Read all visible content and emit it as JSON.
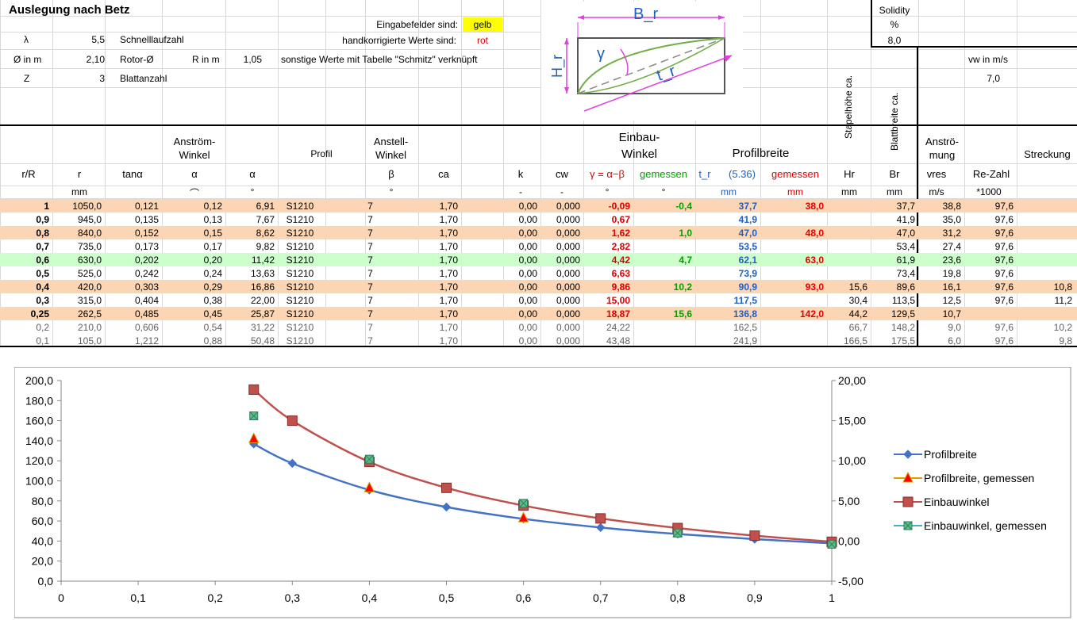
{
  "sheet": {
    "title": "Auslegung nach Betz",
    "input_label": "Eingabefelder sind:",
    "input_value": "gelb",
    "corrected_label": "handkorrigierte Werte sind:",
    "corrected_value": "rot",
    "other_label": "sonstige Werte mit Tabelle \"Schmitz\" verknüpft",
    "lambda_label": "λ",
    "lambda_value": "5,5",
    "lambda_desc": "Schnelllaufzahl",
    "d_label": "Ø in m",
    "d_value": "2,10",
    "d_desc": "Rotor-Ø",
    "r_label": "R in m",
    "r_value": "1,05",
    "z_label": "Z",
    "z_value": "3",
    "z_desc": "Blattanzahl",
    "solidity_label": "Solidity",
    "solidity_unit": "%",
    "solidity_value": "8,0",
    "vw_label": "vw in m/s",
    "vw_value": "7,0",
    "stapel_label": "Stapelhöhe ca.",
    "blattbreite_label": "Blattbreite ca."
  },
  "diagram": {
    "b_label": "B_r",
    "h_label": "H_r",
    "gamma_label": "γ",
    "t_label": "t_r"
  },
  "headers": {
    "anstroem_winkel": [
      "Anström-",
      "Winkel"
    ],
    "profil": "Profil",
    "anstell_winkel": [
      "Anstell-",
      "Winkel"
    ],
    "einbau_winkel": [
      "Einbau-",
      "Winkel"
    ],
    "profilbreite": "Profilbreite",
    "anstroemung": [
      "Anströ-",
      "mung"
    ],
    "streckung": "Streckung",
    "re_zahl": "Re-Zahl",
    "cols": [
      "r/R",
      "r",
      "tanα",
      "α",
      "α",
      "",
      "β",
      "ca",
      "k",
      "cw",
      "γ = α−β",
      "gemessen",
      "t_r",
      "(5.36)",
      "gemessen",
      "Hr",
      "Br",
      "vres",
      "",
      ""
    ],
    "units": [
      "",
      "mm",
      "",
      "⌒",
      "°",
      "",
      "°",
      "",
      "-",
      "-",
      "°",
      "°",
      "mm",
      "",
      "mm",
      "mm",
      "mm",
      "m/s",
      "*1000",
      ""
    ]
  },
  "rows": [
    [
      "1",
      "1050,0",
      "0,121",
      "0,12",
      "6,91",
      "S1210",
      "7",
      "1,70",
      "0,00",
      "0,000",
      "-0,09",
      "-0,4",
      "37,7",
      "",
      "38,0",
      "",
      "37,7",
      "38,8",
      "97,6",
      ""
    ],
    [
      "0,9",
      "945,0",
      "0,135",
      "0,13",
      "7,67",
      "S1210",
      "7",
      "1,70",
      "0,00",
      "0,000",
      "0,67",
      "",
      "41,9",
      "",
      "",
      "",
      "41,9",
      "35,0",
      "97,6",
      ""
    ],
    [
      "0,8",
      "840,0",
      "0,152",
      "0,15",
      "8,62",
      "S1210",
      "7",
      "1,70",
      "0,00",
      "0,000",
      "1,62",
      "1,0",
      "47,0",
      "",
      "48,0",
      "",
      "47,0",
      "31,2",
      "97,6",
      ""
    ],
    [
      "0,7",
      "735,0",
      "0,173",
      "0,17",
      "9,82",
      "S1210",
      "7",
      "1,70",
      "0,00",
      "0,000",
      "2,82",
      "",
      "53,5",
      "",
      "",
      "",
      "53,4",
      "27,4",
      "97,6",
      ""
    ],
    [
      "0,6",
      "630,0",
      "0,202",
      "0,20",
      "11,42",
      "S1210",
      "7",
      "1,70",
      "0,00",
      "0,000",
      "4,42",
      "4,7",
      "62,1",
      "",
      "63,0",
      "",
      "61,9",
      "23,6",
      "97,6",
      ""
    ],
    [
      "0,5",
      "525,0",
      "0,242",
      "0,24",
      "13,63",
      "S1210",
      "7",
      "1,70",
      "0,00",
      "0,000",
      "6,63",
      "",
      "73,9",
      "",
      "",
      "",
      "73,4",
      "19,8",
      "97,6",
      ""
    ],
    [
      "0,4",
      "420,0",
      "0,303",
      "0,29",
      "16,86",
      "S1210",
      "7",
      "1,70",
      "0,00",
      "0,000",
      "9,86",
      "10,2",
      "90,9",
      "",
      "93,0",
      "15,6",
      "89,6",
      "16,1",
      "97,6",
      "10,8"
    ],
    [
      "0,3",
      "315,0",
      "0,404",
      "0,38",
      "22,00",
      "S1210",
      "7",
      "1,70",
      "0,00",
      "0,000",
      "15,00",
      "",
      "117,5",
      "",
      "",
      "30,4",
      "113,5",
      "12,5",
      "97,6",
      "11,2"
    ],
    [
      "0,25",
      "262,5",
      "0,485",
      "0,45",
      "25,87",
      "S1210",
      "7",
      "1,70",
      "0,00",
      "0,000",
      "18,87",
      "15,6",
      "136,8",
      "",
      "142,0",
      "44,2",
      "129,5",
      "10,7",
      "",
      ""
    ],
    [
      "0,2",
      "210,0",
      "0,606",
      "0,54",
      "31,22",
      "S1210",
      "7",
      "1,70",
      "0,00",
      "0,000",
      "24,22",
      "",
      "162,5",
      "",
      "",
      "66,7",
      "148,2",
      "9,0",
      "97,6",
      "10,2"
    ],
    [
      "0,1",
      "105,0",
      "1,212",
      "0,88",
      "50,48",
      "S1210",
      "7",
      "1,70",
      "0,00",
      "0,000",
      "43,48",
      "",
      "241,9",
      "",
      "",
      "166,5",
      "175,5",
      "6,0",
      "97,6",
      "9,8"
    ]
  ],
  "row_styles": [
    "orange",
    "white",
    "orange",
    "white",
    "green",
    "white",
    "orange",
    "white",
    "orange",
    "gray",
    "gray"
  ],
  "colors": {
    "orange": "#fcd5b4",
    "green": "#ccffcc",
    "yellow": "#ffff00",
    "red": "#e00000",
    "blue": "#4472c4",
    "darkred": "#c0504d",
    "teal": "#4bacc6"
  },
  "chart_data": {
    "type": "line",
    "x": [
      1,
      0.9,
      0.8,
      0.7,
      0.6,
      0.5,
      0.4,
      0.3,
      0.25
    ],
    "xlim": [
      0,
      1
    ],
    "xticks": [
      "0",
      "0,1",
      "0,2",
      "0,3",
      "0,4",
      "0,5",
      "0,6",
      "0,7",
      "0,8",
      "0,9",
      "1"
    ],
    "ylim": [
      0,
      200
    ],
    "yticks": [
      "0,0",
      "20,0",
      "40,0",
      "60,0",
      "80,0",
      "100,0",
      "120,0",
      "140,0",
      "160,0",
      "180,0",
      "200,0"
    ],
    "y2lim": [
      -5,
      20
    ],
    "y2ticks": [
      "-5,00",
      "0,00",
      "5,00",
      "10,00",
      "15,00",
      "20,00"
    ],
    "legend_position": "right",
    "series": [
      {
        "name": "Profilbreite",
        "axis": "left",
        "marker": "diamond",
        "color": "#4472c4",
        "x": [
          1,
          0.9,
          0.8,
          0.7,
          0.6,
          0.5,
          0.4,
          0.3,
          0.25
        ],
        "values": [
          37.7,
          41.9,
          47.0,
          53.5,
          62.1,
          73.9,
          90.9,
          117.5,
          136.8
        ]
      },
      {
        "name": "Profilbreite, gemessen",
        "axis": "left",
        "marker": "triangle",
        "color": "#ff0000",
        "x": [
          1,
          0.8,
          0.6,
          0.4,
          0.25
        ],
        "values": [
          38.0,
          48.0,
          63.0,
          93.0,
          142.0
        ]
      },
      {
        "name": "Einbauwinkel",
        "axis": "right",
        "marker": "square",
        "color": "#c0504d",
        "x": [
          1,
          0.9,
          0.8,
          0.7,
          0.6,
          0.5,
          0.4,
          0.3,
          0.25
        ],
        "values": [
          -0.09,
          0.67,
          1.62,
          2.82,
          4.42,
          6.63,
          9.86,
          15.0,
          18.87
        ]
      },
      {
        "name": "Einbauwinkel, gemessen",
        "axis": "right",
        "marker": "xsquare",
        "color": "#4bacc6",
        "x": [
          1,
          0.8,
          0.6,
          0.4,
          0.25
        ],
        "values": [
          -0.4,
          1.0,
          4.7,
          10.2,
          15.6
        ]
      }
    ]
  }
}
